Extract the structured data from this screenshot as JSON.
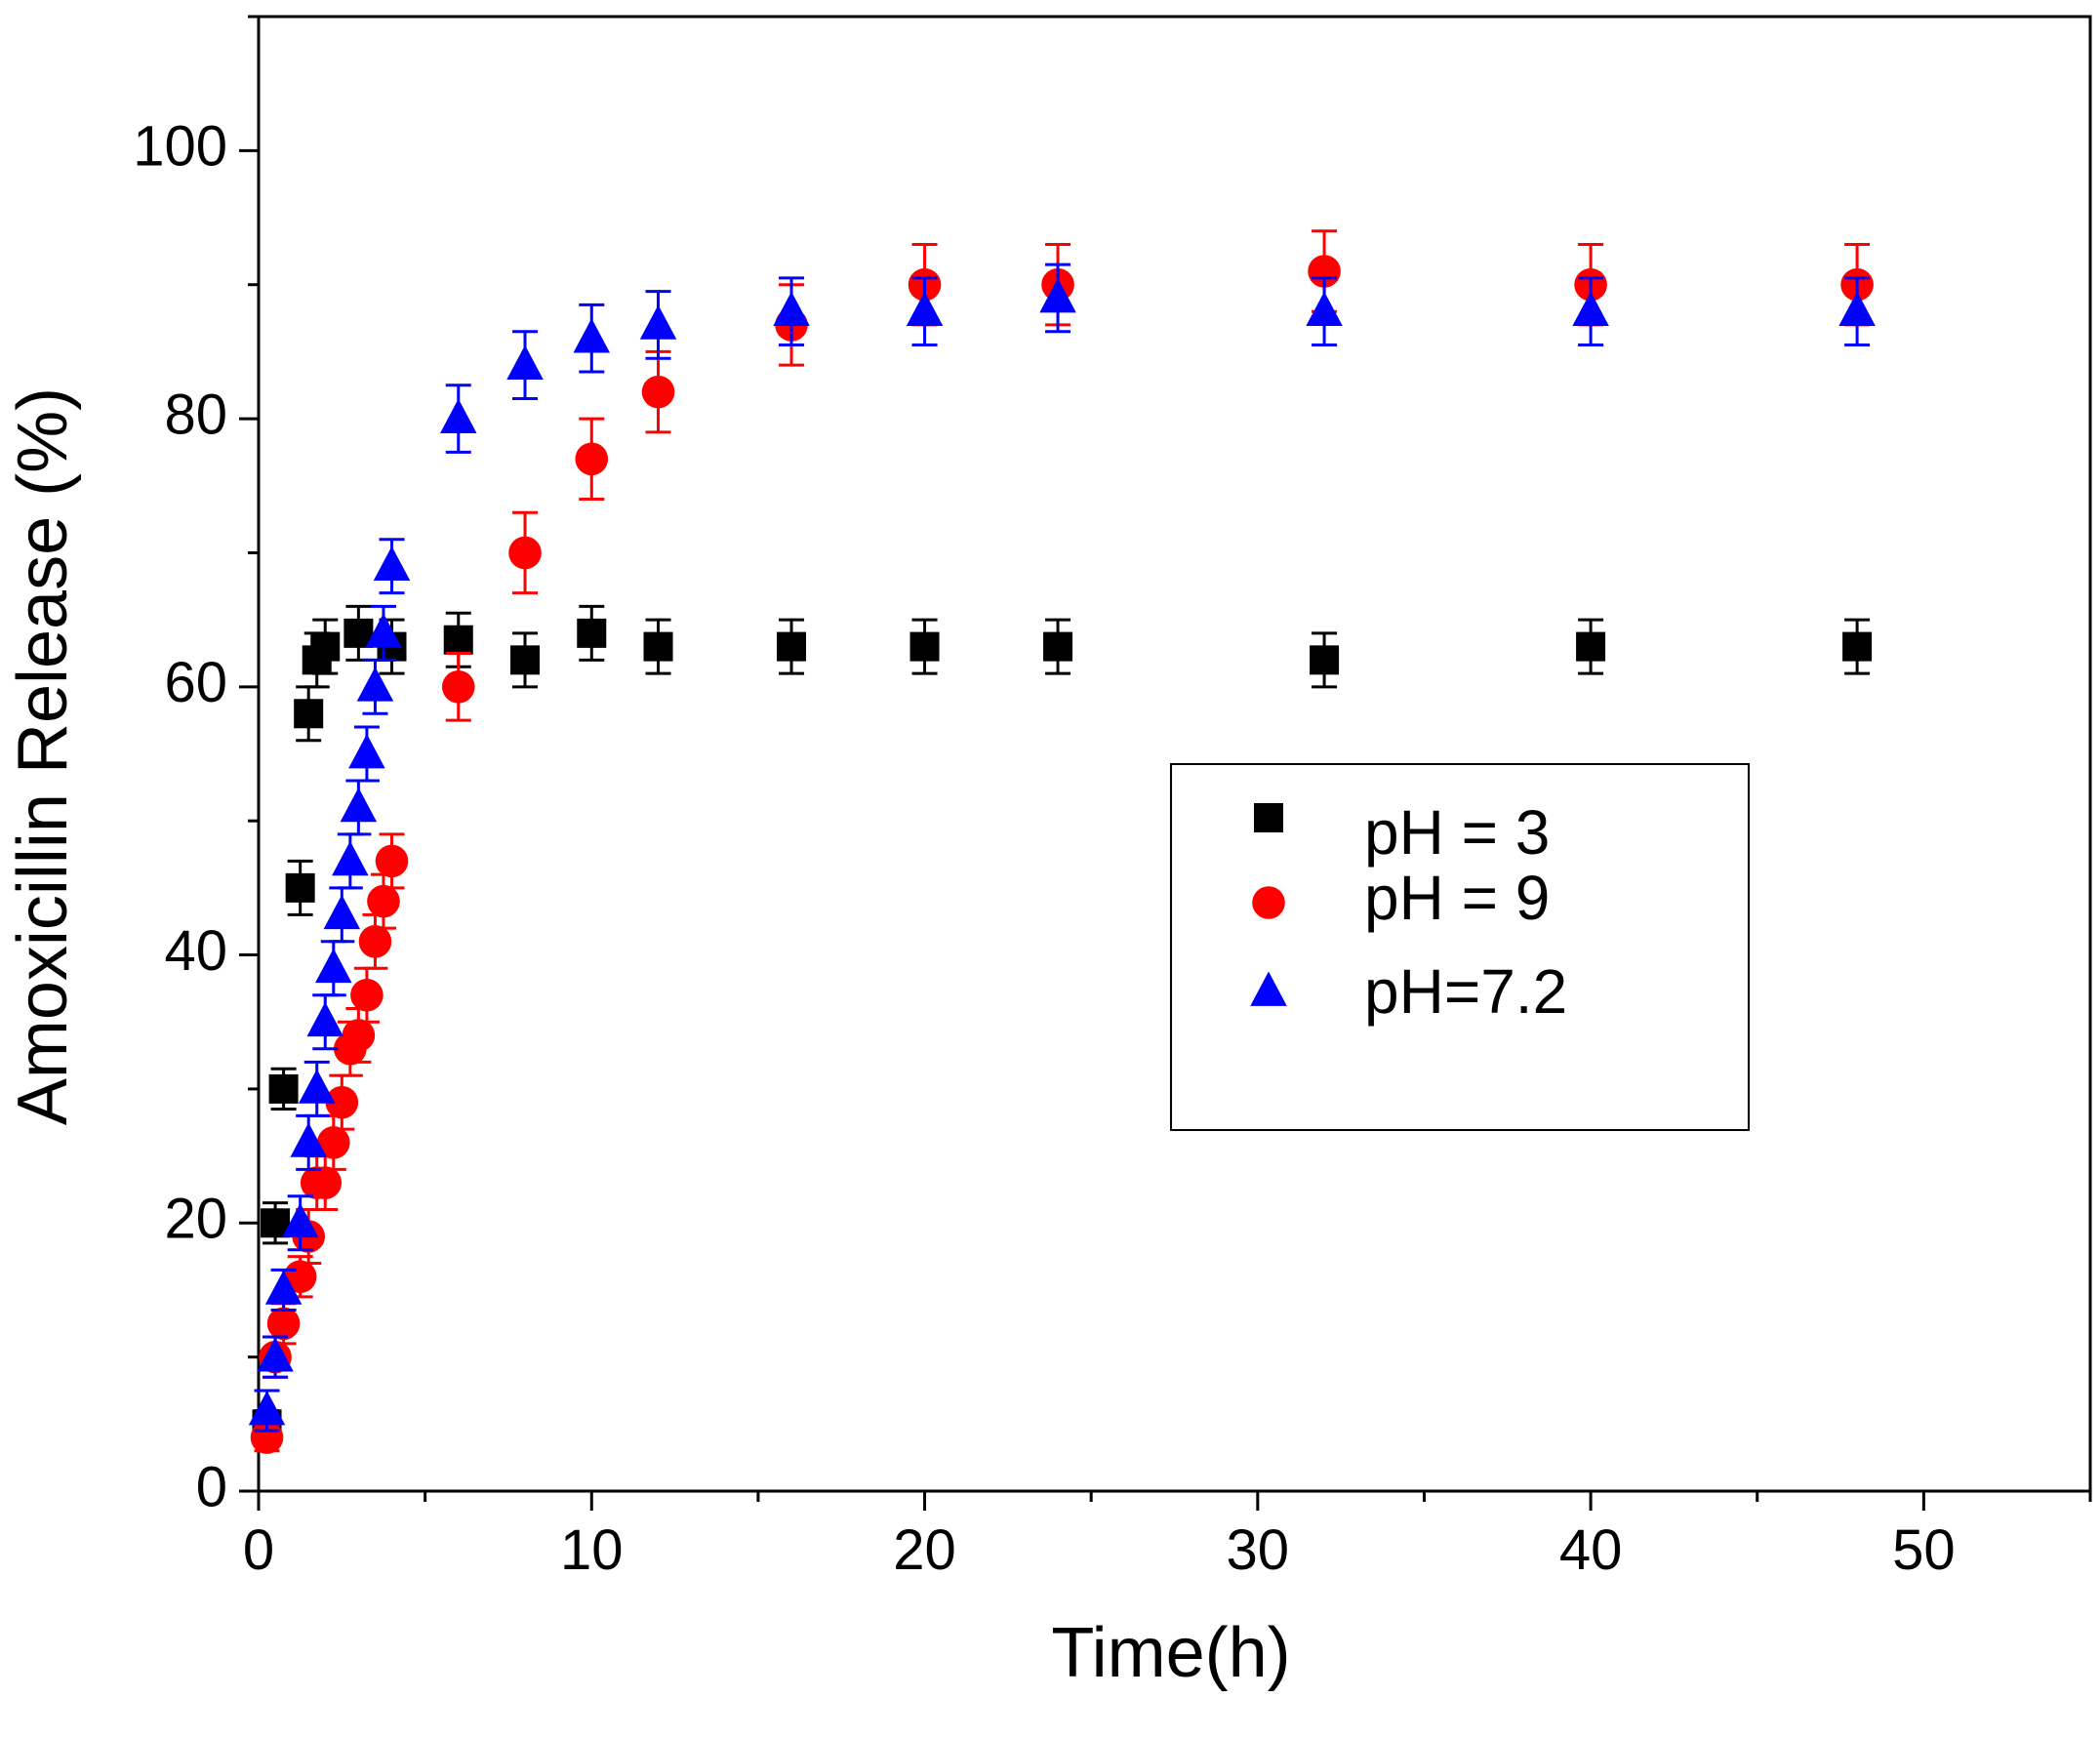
{
  "chart_data": {
    "type": "scatter",
    "title": "",
    "xlabel": "Time(h)",
    "ylabel": "Amoxicillin Release (%)",
    "xlim": [
      0,
      55
    ],
    "ylim": [
      0,
      110
    ],
    "x_ticks": [
      0,
      10,
      20,
      30,
      40,
      50
    ],
    "x_minor_step": 5,
    "y_ticks": [
      0,
      20,
      40,
      60,
      80,
      100
    ],
    "y_minor_step": 10,
    "grid": false,
    "legend_position": "center-right",
    "series": [
      {
        "name": "pH = 3",
        "marker": "square",
        "color": "#000000",
        "x": [
          0.25,
          0.5,
          0.75,
          1.25,
          1.5,
          1.75,
          2,
          3,
          4,
          6,
          8,
          10,
          12,
          16,
          20,
          24,
          32,
          40,
          48
        ],
        "y": [
          5,
          20,
          30,
          45,
          58,
          62,
          63,
          64,
          63,
          63.5,
          62,
          64,
          63,
          63,
          63,
          63,
          62,
          63,
          63
        ],
        "err": [
          1,
          1.5,
          1.5,
          2,
          2,
          2,
          2,
          2,
          2,
          2,
          2,
          2,
          2,
          2,
          2,
          2,
          2,
          2,
          2
        ]
      },
      {
        "name": "pH = 9",
        "marker": "circle",
        "color": "#ff0000",
        "x": [
          0.25,
          0.5,
          0.75,
          1.25,
          1.5,
          1.75,
          2,
          2.25,
          2.5,
          2.75,
          3,
          3.25,
          3.5,
          3.75,
          4,
          6,
          8,
          10,
          12,
          16,
          20,
          24,
          32,
          40,
          48
        ],
        "y": [
          4,
          10,
          12.5,
          16,
          19,
          23,
          23,
          26,
          29,
          33,
          34,
          37,
          41,
          44,
          47,
          60,
          70,
          77,
          82,
          87,
          90,
          90,
          91,
          90,
          90
        ],
        "err": [
          1,
          1.5,
          1.5,
          1.5,
          2,
          2,
          2,
          2,
          2,
          2,
          2,
          2,
          2,
          2,
          2,
          2.5,
          3,
          3,
          3,
          3,
          3,
          3,
          3,
          3,
          3
        ]
      },
      {
        "name": "pH=7.2",
        "marker": "triangle",
        "color": "#0000ff",
        "x": [
          0.25,
          0.5,
          0.75,
          1.25,
          1.5,
          1.75,
          2,
          2.25,
          2.5,
          2.75,
          3,
          3.25,
          3.5,
          3.75,
          4,
          6,
          8,
          10,
          12,
          16,
          20,
          24,
          32,
          40,
          48
        ],
        "y": [
          6,
          10,
          15,
          20,
          26,
          30,
          35,
          39,
          43,
          47,
          51,
          55,
          60,
          64,
          69,
          80,
          84,
          86,
          87,
          88,
          88,
          89,
          88,
          88,
          88
        ],
        "err": [
          1.5,
          1.5,
          1.5,
          2,
          2,
          2,
          2,
          2,
          2,
          2,
          2,
          2,
          2,
          2,
          2,
          2.5,
          2.5,
          2.5,
          2.5,
          2.5,
          2.5,
          2.5,
          2.5,
          2.5,
          2.5
        ]
      }
    ]
  }
}
